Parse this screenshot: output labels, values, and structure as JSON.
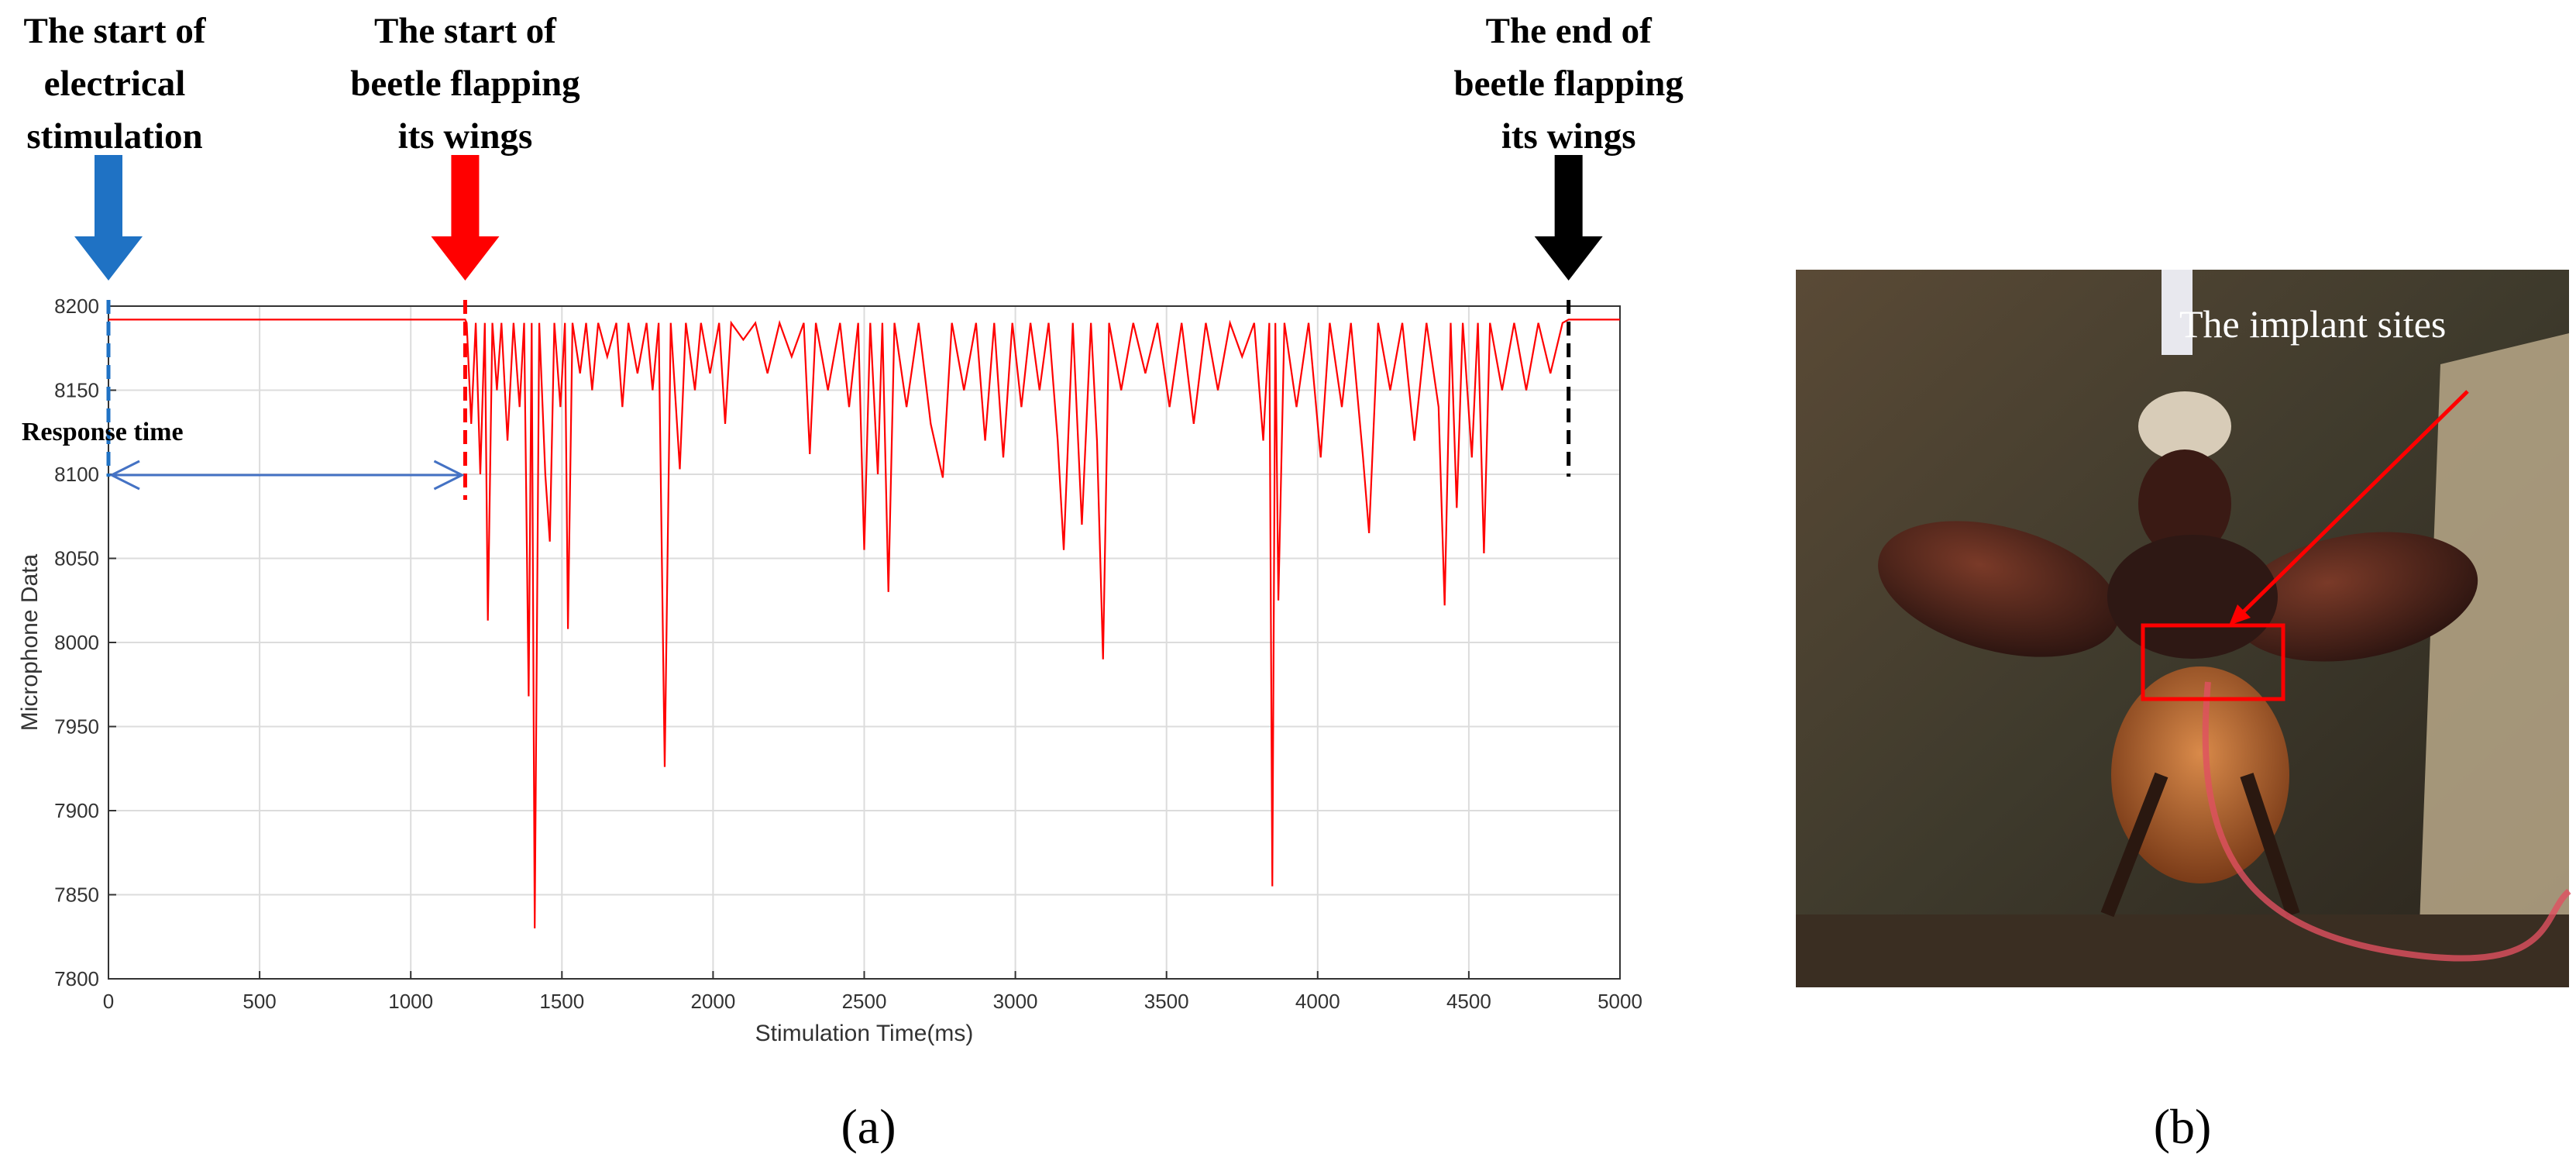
{
  "chart_data": {
    "type": "line",
    "xlabel": "Stimulation Time(ms)",
    "ylabel": "Microphone Data",
    "panel_label": "(a)",
    "xlim": [
      0,
      5000
    ],
    "ylim": [
      7800,
      8200
    ],
    "xticks": [
      0,
      500,
      1000,
      1500,
      2000,
      2500,
      3000,
      3500,
      4000,
      4500,
      5000
    ],
    "yticks": [
      7800,
      7850,
      7900,
      7950,
      8000,
      8050,
      8100,
      8150,
      8200
    ],
    "grid": true,
    "response_time_label": "Response time",
    "annotations": [
      {
        "lines": [
          "The start of",
          "electrical",
          "stimulation"
        ],
        "x": 0,
        "color": "#1f72c4"
      },
      {
        "lines": [
          "The start of",
          "beetle flapping",
          "its wings"
        ],
        "x": 1180,
        "color": "#ff0000"
      },
      {
        "lines": [
          "The end of",
          "beetle flapping",
          "its wings"
        ],
        "x": 4830,
        "color": "#000000"
      }
    ],
    "x": [
      0,
      1180,
      1185,
      1200,
      1215,
      1230,
      1245,
      1255,
      1270,
      1285,
      1300,
      1320,
      1340,
      1360,
      1375,
      1390,
      1400,
      1410,
      1425,
      1445,
      1460,
      1475,
      1495,
      1510,
      1520,
      1535,
      1560,
      1580,
      1600,
      1620,
      1650,
      1680,
      1700,
      1720,
      1750,
      1780,
      1800,
      1820,
      1840,
      1860,
      1890,
      1910,
      1940,
      1960,
      1990,
      2020,
      2040,
      2060,
      2100,
      2140,
      2180,
      2220,
      2260,
      2300,
      2320,
      2340,
      2380,
      2420,
      2450,
      2480,
      2500,
      2520,
      2545,
      2560,
      2580,
      2600,
      2640,
      2680,
      2720,
      2760,
      2790,
      2830,
      2870,
      2900,
      2930,
      2960,
      2990,
      3020,
      3050,
      3080,
      3110,
      3140,
      3160,
      3190,
      3220,
      3250,
      3270,
      3290,
      3310,
      3350,
      3390,
      3430,
      3470,
      3510,
      3550,
      3590,
      3630,
      3670,
      3710,
      3750,
      3790,
      3820,
      3840,
      3850,
      3860,
      3870,
      3890,
      3930,
      3970,
      4010,
      4040,
      4080,
      4110,
      4150,
      4170,
      4200,
      4240,
      4280,
      4320,
      4360,
      4400,
      4420,
      4440,
      4460,
      4480,
      4510,
      4530,
      4550,
      4570,
      4610,
      4650,
      4690,
      4730,
      4770,
      4810,
      4830,
      5000
    ],
    "series": [
      {
        "color": "#ff0000",
        "values": [
          8192,
          8192,
          8190,
          8130,
          8190,
          8100,
          8190,
          8013,
          8190,
          8150,
          8190,
          8120,
          8190,
          8140,
          8190,
          7968,
          8190,
          7830,
          8190,
          8100,
          8060,
          8190,
          8140,
          8190,
          8008,
          8190,
          8160,
          8190,
          8150,
          8190,
          8170,
          8190,
          8140,
          8190,
          8160,
          8190,
          8150,
          8190,
          7926,
          8190,
          8103,
          8190,
          8150,
          8190,
          8160,
          8190,
          8130,
          8190,
          8180,
          8190,
          8160,
          8190,
          8170,
          8190,
          8112,
          8190,
          8150,
          8190,
          8140,
          8190,
          8055,
          8190,
          8100,
          8190,
          8030,
          8190,
          8140,
          8190,
          8130,
          8098,
          8190,
          8150,
          8190,
          8120,
          8190,
          8110,
          8190,
          8140,
          8190,
          8150,
          8190,
          8120,
          8055,
          8190,
          8070,
          8190,
          8120,
          7990,
          8190,
          8150,
          8190,
          8160,
          8190,
          8140,
          8190,
          8130,
          8190,
          8150,
          8190,
          8170,
          8190,
          8120,
          8190,
          7855,
          8190,
          8025,
          8190,
          8140,
          8190,
          8110,
          8190,
          8140,
          8190,
          8110,
          8065,
          8190,
          8150,
          8190,
          8120,
          8190,
          8140,
          8022,
          8190,
          8080,
          8190,
          8110,
          8190,
          8053,
          8190,
          8150,
          8190,
          8150,
          8190,
          8160,
          8190,
          8192,
          8192
        ]
      }
    ]
  },
  "photo": {
    "label": "The implant sites",
    "panel_label": "(b)"
  }
}
